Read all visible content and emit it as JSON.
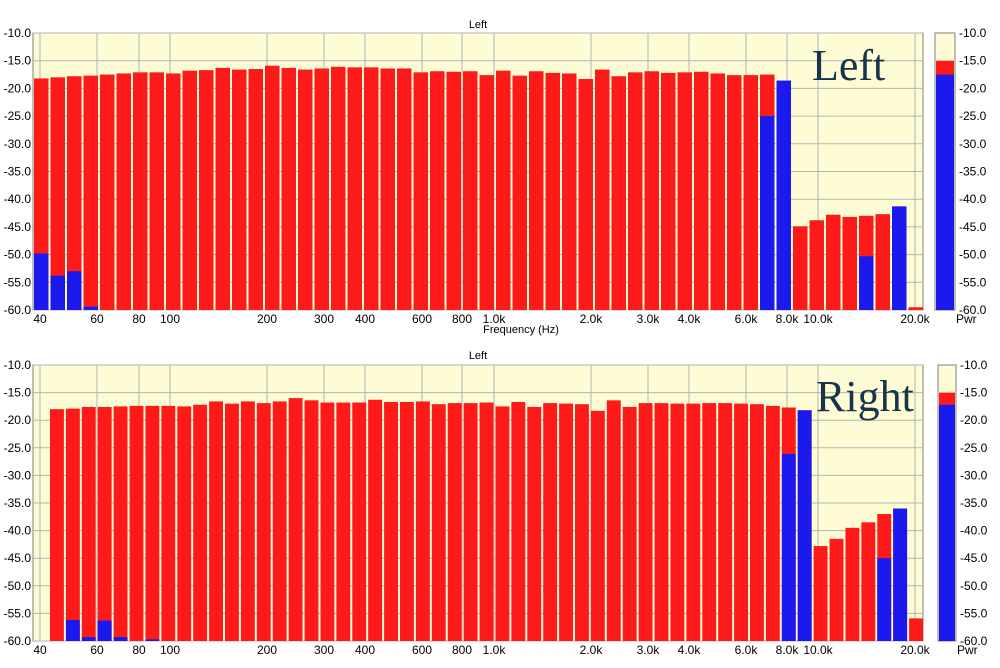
{
  "chart_data": [
    {
      "type": "bar",
      "panel_title": "Left",
      "overlay_label": "Left",
      "xlabel": "Frequency (Hz)",
      "ylim": [
        -60,
        -10
      ],
      "y_ticks": [
        "-10.0",
        "-15.0",
        "-20.0",
        "-25.0",
        "-30.0",
        "-35.0",
        "-40.0",
        "-45.0",
        "-50.0",
        "-55.0",
        "-60.0"
      ],
      "x_tick_labels": [
        "40",
        "60",
        "80",
        "100",
        "200",
        "300",
        "400",
        "600",
        "800",
        "1.0k",
        "2.0k",
        "3.0k",
        "4.0k",
        "6.0k",
        "8.0k",
        "10.0k",
        "20.0k"
      ],
      "series": [
        {
          "name": "",
          "color": "#ff1a1a",
          "values": [
            -18.2,
            -18.0,
            -17.8,
            -17.7,
            -17.5,
            -17.3,
            -17.1,
            -17.1,
            -17.3,
            -16.8,
            -16.7,
            -16.3,
            -16.6,
            -16.5,
            -15.9,
            -16.3,
            -16.6,
            -16.4,
            -16.1,
            -16.2,
            -16.2,
            -16.4,
            -16.4,
            -17.1,
            -16.9,
            -17.0,
            -16.9,
            -17.6,
            -16.8,
            -17.7,
            -16.9,
            -17.2,
            -17.3,
            -18.3,
            -16.6,
            -17.8,
            -17.1,
            -16.9,
            -17.2,
            -17.1,
            -17.0,
            -17.3,
            -17.6,
            -17.6,
            -17.5,
            -18.6,
            -44.9,
            -43.8,
            -42.8,
            -43.2,
            -43.0,
            -42.7,
            -41.3,
            -59.5
          ]
        },
        {
          "name": "",
          "color": "#1a1aee",
          "values": [
            -49.8,
            -53.8,
            -53.0,
            -59.4,
            -60,
            -60,
            -60,
            -60,
            -60,
            -60,
            -60,
            -60,
            -60,
            -60,
            -60,
            -60,
            -60,
            -60,
            -60,
            -60,
            -60,
            -60,
            -60,
            -60,
            -60,
            -60,
            -60,
            -60,
            -60,
            -60,
            -60,
            -60,
            -60,
            -60,
            -60,
            -60,
            -60,
            -60,
            -60,
            -60,
            -60,
            -60,
            -60,
            -60,
            -25.0,
            -18.6,
            -60,
            -60,
            -60,
            -60,
            -50.3,
            -60,
            -41.3,
            -60
          ]
        }
      ],
      "pwr_meter": {
        "label": "Pwr",
        "red_level": -15.0,
        "blue_level": -17.5
      }
    },
    {
      "type": "bar",
      "panel_title": "Left",
      "overlay_label": "Right",
      "xlabel": "",
      "ylim": [
        -60,
        -10
      ],
      "y_ticks": [
        "-10.0",
        "-15.0",
        "-20.0",
        "-25.0",
        "-30.0",
        "-35.0",
        "-40.0",
        "-45.0",
        "-50.0",
        "-55.0",
        "-60.0"
      ],
      "x_tick_labels": [
        "40",
        "60",
        "80",
        "100",
        "200",
        "300",
        "400",
        "600",
        "800",
        "1.0k",
        "2.0k",
        "3.0k",
        "4.0k",
        "6.0k",
        "8.0k",
        "10.0k",
        "20.0k"
      ],
      "series": [
        {
          "name": "",
          "color": "#ff1a1a",
          "values": [
            -18.0,
            -17.9,
            -17.6,
            -17.6,
            -17.5,
            -17.4,
            -17.4,
            -17.4,
            -17.5,
            -17.2,
            -16.6,
            -17.0,
            -16.6,
            -16.9,
            -16.6,
            -16.0,
            -16.4,
            -16.8,
            -16.8,
            -16.8,
            -16.3,
            -16.7,
            -16.7,
            -16.6,
            -17.1,
            -16.9,
            -16.9,
            -16.8,
            -17.5,
            -16.7,
            -17.6,
            -16.9,
            -17.0,
            -17.1,
            -18.3,
            -16.4,
            -17.6,
            -16.9,
            -16.9,
            -17.0,
            -17.0,
            -16.9,
            -16.9,
            -17.0,
            -17.1,
            -17.4,
            -17.7,
            -18.2,
            -42.8,
            -41.5,
            -39.5,
            -38.5,
            -37.0,
            -36.0,
            -55.9
          ]
        },
        {
          "name": "",
          "color": "#1a1aee",
          "values": [
            -60,
            -56.2,
            -59.3,
            -56.3,
            -59.3,
            -60,
            -59.7,
            -60,
            -60,
            -60,
            -60,
            -60,
            -60,
            -60,
            -60,
            -60,
            -60,
            -60,
            -60,
            -60,
            -60,
            -60,
            -60,
            -60,
            -60,
            -60,
            -60,
            -60,
            -60,
            -60,
            -60,
            -60,
            -60,
            -60,
            -60,
            -60,
            -60,
            -60,
            -60,
            -60,
            -60,
            -60,
            -60,
            -60,
            -60,
            -60,
            -26.1,
            -18.2,
            -60,
            -60,
            -60,
            -60,
            -45.0,
            -36.0,
            -60
          ]
        }
      ],
      "pwr_meter": {
        "label": "Pwr",
        "red_level": -15.0,
        "blue_level": -17.2
      }
    }
  ],
  "colors": {
    "plot_bg": "#fefcd5",
    "grid": "#b4b4b4",
    "red": "#ff1a1a",
    "blue": "#1a1aee"
  }
}
